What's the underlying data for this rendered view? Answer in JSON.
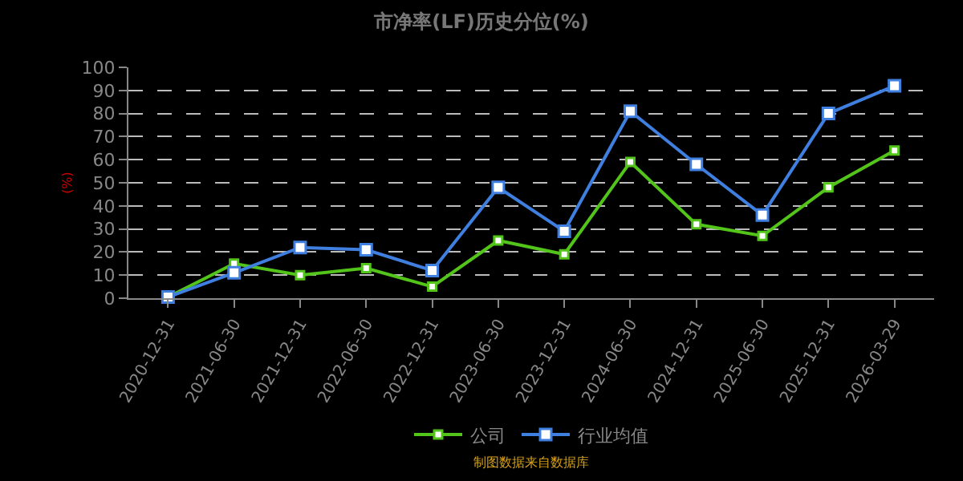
{
  "chart_data": {
    "type": "line",
    "title": "市净率(LF)历史分位(%)",
    "ylabel": "(%)",
    "categories": [
      "2020-12-31",
      "2021-06-30",
      "2021-12-31",
      "2022-06-30",
      "2022-12-31",
      "2023-06-30",
      "2023-12-31",
      "2024-06-30",
      "2024-12-31",
      "2025-06-30",
      "2025-12-31",
      "2026-03-29"
    ],
    "series": [
      {
        "name": "公司",
        "color": "#52c41a",
        "values": [
          0.5,
          15,
          10,
          13,
          5,
          25,
          19,
          59,
          32,
          27,
          48,
          64
        ]
      },
      {
        "name": "行业均值",
        "color": "#3f7fe0",
        "values": [
          0.5,
          11,
          22,
          21,
          12,
          48,
          29,
          81,
          58,
          36,
          80,
          92
        ]
      }
    ],
    "ylim": [
      0,
      100
    ],
    "yticks": [
      0,
      10,
      20,
      30,
      40,
      50,
      60,
      70,
      80,
      90,
      100
    ],
    "grid": "y",
    "legend": "bottom",
    "marker": "square",
    "line_style": "solid",
    "annotations": [
      "制图数据来自数据库"
    ]
  }
}
